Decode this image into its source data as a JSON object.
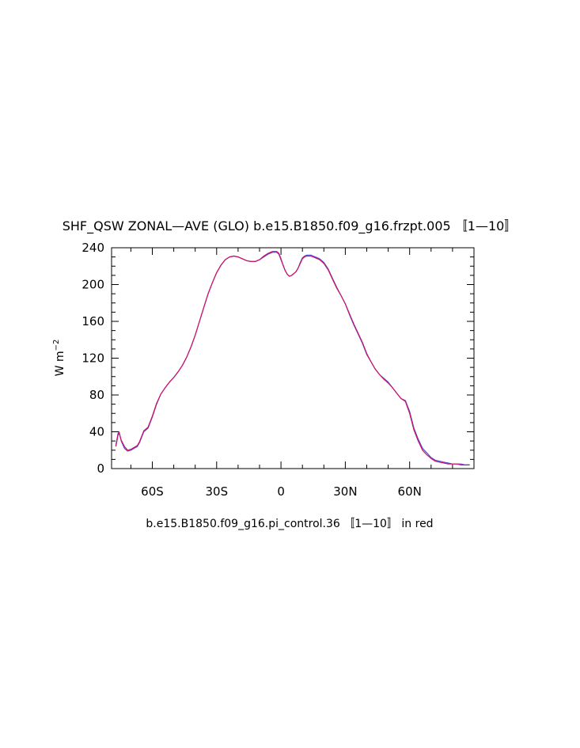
{
  "chart_data": {
    "type": "line",
    "title": "SHF_QSW ZONAL—AVE (GLO) b.e15.B1850.f09_g16.frzpt.005 〚1—10〛",
    "ylabel_main": "W m",
    "ylabel_exp": "−2",
    "caption": "b.e15.B1850.f09_g16.pi_control.36 〚1—10〛 in red",
    "xlim": [
      -79,
      90
    ],
    "ylim": [
      0,
      240
    ],
    "yticks": [
      {
        "value": 0,
        "label": "0"
      },
      {
        "value": 40,
        "label": "40"
      },
      {
        "value": 80,
        "label": "80"
      },
      {
        "value": 120,
        "label": "120"
      },
      {
        "value": 160,
        "label": "160"
      },
      {
        "value": 200,
        "label": "200"
      },
      {
        "value": 240,
        "label": "240"
      }
    ],
    "xticks": [
      {
        "value": -60,
        "label": "60S"
      },
      {
        "value": -30,
        "label": "30S"
      },
      {
        "value": 0,
        "label": "0"
      },
      {
        "value": 30,
        "label": "30N"
      },
      {
        "value": 60,
        "label": "60N"
      }
    ],
    "series": [
      {
        "color": "#4a4ae0",
        "x": [
          -77,
          -76,
          -75.5,
          -74.5,
          -73,
          -71.5,
          -70,
          -68.5,
          -67,
          -66,
          -64,
          -62,
          -60,
          -58,
          -56,
          -54,
          -52,
          -50,
          -48,
          -46,
          -44,
          -42,
          -40,
          -38,
          -36,
          -34,
          -32,
          -30,
          -28,
          -26,
          -24,
          -22,
          -20,
          -18,
          -16,
          -14,
          -12,
          -10,
          -8,
          -6,
          -4,
          -2,
          -1,
          0,
          1,
          2,
          3,
          4,
          5,
          6,
          7,
          8,
          9,
          10,
          11,
          12,
          13,
          14,
          15,
          16,
          18,
          20,
          22,
          24,
          26,
          28,
          30,
          32,
          34,
          36,
          38,
          40,
          42,
          44,
          46,
          48,
          50,
          52,
          54,
          56,
          58,
          60,
          62,
          64,
          66,
          68,
          70,
          72,
          74,
          76,
          78,
          80,
          82,
          84,
          86,
          88
        ],
        "y": [
          25,
          38,
          40,
          30,
          22,
          19,
          20,
          22,
          24,
          28,
          40,
          44,
          56,
          70,
          81,
          88,
          94,
          99,
          105,
          112,
          121,
          132,
          145,
          160,
          175,
          190,
          202,
          213,
          221,
          227,
          230,
          231,
          230,
          228,
          226,
          225,
          225,
          227,
          230,
          233,
          235,
          235,
          233,
          227,
          221,
          215,
          211,
          209,
          210,
          212,
          214,
          218,
          224,
          229,
          231,
          232,
          232,
          232,
          231,
          230,
          228,
          224,
          217,
          207,
          197,
          188,
          179,
          167,
          156,
          146,
          136,
          124,
          116,
          108,
          102,
          98,
          94,
          88,
          82,
          76,
          74,
          62,
          44,
          32,
          22,
          17,
          12,
          9,
          8,
          7,
          6,
          5,
          5,
          5,
          4,
          4
        ]
      },
      {
        "color": "#d01060",
        "x": [
          -77,
          -76,
          -75.5,
          -74.5,
          -73,
          -71.5,
          -70,
          -68.5,
          -67,
          -66,
          -64,
          -62,
          -60,
          -58,
          -56,
          -54,
          -52,
          -50,
          -48,
          -46,
          -44,
          -42,
          -40,
          -38,
          -36,
          -34,
          -32,
          -30,
          -28,
          -26,
          -24,
          -22,
          -20,
          -18,
          -16,
          -14,
          -12,
          -10,
          -8,
          -6,
          -4,
          -2,
          -1,
          0,
          1,
          2,
          3,
          4,
          5,
          6,
          7,
          8,
          9,
          10,
          11,
          12,
          13,
          14,
          15,
          16,
          18,
          20,
          22,
          24,
          26,
          28,
          30,
          32,
          34,
          36,
          38,
          40,
          42,
          44,
          46,
          48,
          50,
          52,
          54,
          56,
          58,
          60,
          62,
          64,
          66,
          68,
          70,
          72,
          74,
          76,
          78,
          80,
          82,
          84,
          86,
          88
        ],
        "y": [
          24,
          36,
          39,
          31,
          24,
          20,
          21,
          23,
          25,
          29,
          41,
          45,
          57,
          71,
          81,
          88,
          94,
          99,
          105,
          112,
          121,
          132,
          145,
          160,
          175,
          190,
          202,
          213,
          221,
          227,
          230,
          231,
          230,
          228,
          226,
          225,
          225,
          227,
          231,
          234,
          236,
          236,
          234,
          228,
          221,
          215,
          211,
          209,
          210,
          212,
          214,
          218,
          223,
          228,
          230,
          231,
          231,
          231,
          230,
          229,
          227,
          223,
          216,
          206,
          196,
          188,
          179,
          168,
          157,
          147,
          137,
          125,
          116,
          108,
          102,
          97,
          93,
          88,
          82,
          76,
          73,
          60,
          42,
          30,
          20,
          15,
          11,
          8,
          7,
          6,
          5,
          5,
          5,
          4,
          4,
          4
        ]
      }
    ]
  }
}
